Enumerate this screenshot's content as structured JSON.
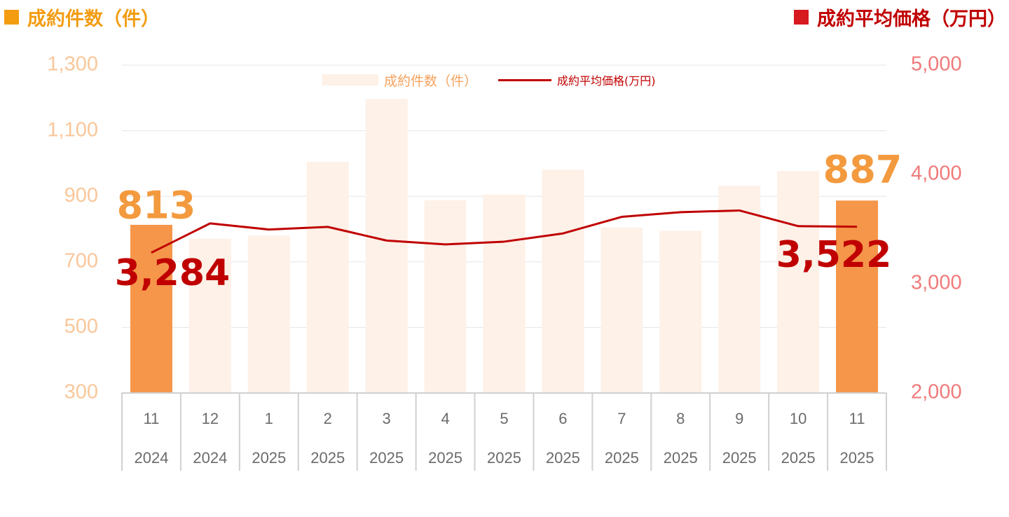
{
  "header": {
    "left_title": "成約件数（件）",
    "right_title": "成約平均価格（万円）"
  },
  "legend": {
    "bar_label": "成約件数（件）",
    "line_label": "成約平均価格(万円)"
  },
  "colors": {
    "bar_faded": "#FDF1E8",
    "bar_highlight": "#F5964A",
    "line": "#C00000",
    "left_axis": "#F9C79A",
    "right_axis": "#F07A7A",
    "grid": "#E6E6E6"
  },
  "chart_data": {
    "type": "bar+line",
    "categories": [
      {
        "month": "11",
        "year": "2024"
      },
      {
        "month": "12",
        "year": "2024"
      },
      {
        "month": "1",
        "year": "2025"
      },
      {
        "month": "2",
        "year": "2025"
      },
      {
        "month": "3",
        "year": "2025"
      },
      {
        "month": "4",
        "year": "2025"
      },
      {
        "month": "5",
        "year": "2025"
      },
      {
        "month": "6",
        "year": "2025"
      },
      {
        "month": "7",
        "year": "2025"
      },
      {
        "month": "8",
        "year": "2025"
      },
      {
        "month": "9",
        "year": "2025"
      },
      {
        "month": "10",
        "year": "2025"
      },
      {
        "month": "11",
        "year": "2025"
      }
    ],
    "series": [
      {
        "name": "成約件数（件）",
        "axis": "left",
        "kind": "bar",
        "values": [
          813,
          771,
          780,
          1005,
          1197,
          888,
          905,
          981,
          805,
          795,
          932,
          977,
          887
        ],
        "highlighted": [
          0,
          12
        ]
      },
      {
        "name": "成約平均価格(万円)",
        "axis": "right",
        "kind": "line",
        "values": [
          3284,
          3552,
          3496,
          3520,
          3395,
          3360,
          3385,
          3460,
          3612,
          3655,
          3670,
          3527,
          3522
        ]
      }
    ],
    "y_left": {
      "min": 300,
      "max": 1300,
      "ticks": [
        "300",
        "500",
        "700",
        "900",
        "1,100",
        "1,300"
      ]
    },
    "y_right": {
      "min": 2000,
      "max": 5000,
      "ticks": [
        "2,000",
        "3,000",
        "4,000",
        "5,000"
      ]
    },
    "data_labels": {
      "first_bar": "813",
      "last_bar": "887",
      "first_line": "3,284",
      "last_line": "3,522"
    },
    "grid": true,
    "legend_position": "top-center"
  }
}
